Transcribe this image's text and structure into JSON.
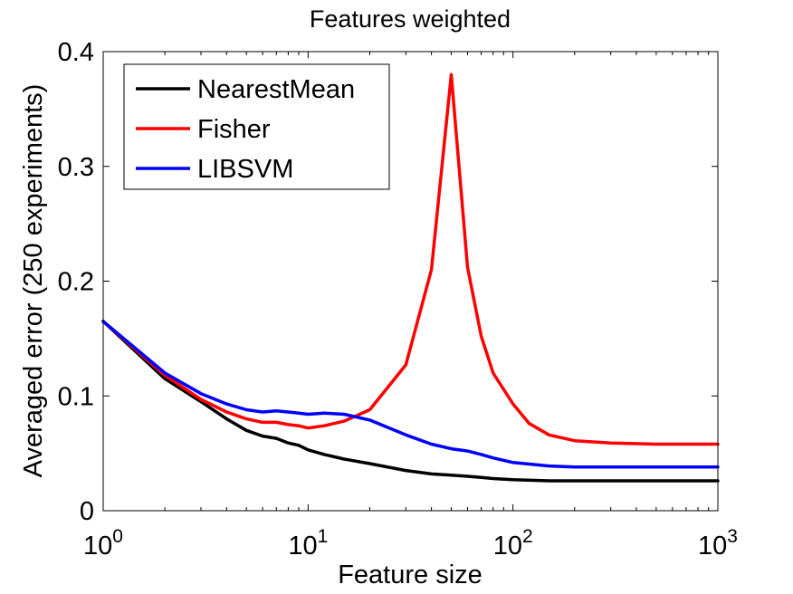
{
  "chart_data": {
    "type": "line",
    "title": "Features weighted",
    "xlabel": "Feature size",
    "ylabel": "Averaged error (250 experiments)",
    "xscale": "log",
    "xlim": [
      1,
      1000
    ],
    "ylim": [
      0,
      0.4
    ],
    "x_ticks": [
      {
        "base": "10",
        "exp": "0"
      },
      {
        "base": "10",
        "exp": "1"
      },
      {
        "base": "10",
        "exp": "2"
      },
      {
        "base": "10",
        "exp": "3"
      }
    ],
    "y_ticks": [
      "0",
      "0.1",
      "0.2",
      "0.3",
      "0.4"
    ],
    "grid": false,
    "legend_position": "top-left",
    "series": [
      {
        "name": "NearestMean",
        "color": "#000000",
        "x": [
          1,
          2,
          3,
          4,
          5,
          6,
          7,
          8,
          9,
          10,
          12,
          15,
          20,
          30,
          40,
          50,
          60,
          70,
          80,
          100,
          150,
          200,
          500,
          1000
        ],
        "y": [
          0.165,
          0.115,
          0.095,
          0.08,
          0.07,
          0.065,
          0.063,
          0.059,
          0.057,
          0.053,
          0.049,
          0.045,
          0.041,
          0.035,
          0.032,
          0.031,
          0.03,
          0.029,
          0.028,
          0.027,
          0.026,
          0.026,
          0.026,
          0.026
        ]
      },
      {
        "name": "Fisher",
        "color": "#ff0000",
        "x": [
          1,
          2,
          3,
          4,
          5,
          6,
          7,
          8,
          9,
          10,
          12,
          15,
          20,
          30,
          40,
          50,
          60,
          70,
          80,
          100,
          120,
          150,
          200,
          300,
          500,
          1000
        ],
        "y": [
          0.165,
          0.118,
          0.097,
          0.086,
          0.08,
          0.077,
          0.077,
          0.075,
          0.074,
          0.072,
          0.074,
          0.078,
          0.088,
          0.127,
          0.21,
          0.38,
          0.212,
          0.152,
          0.12,
          0.093,
          0.076,
          0.066,
          0.061,
          0.059,
          0.058,
          0.058
        ]
      },
      {
        "name": "LIBSVM",
        "color": "#0000ff",
        "x": [
          1,
          2,
          3,
          4,
          5,
          6,
          7,
          8,
          9,
          10,
          12,
          15,
          20,
          30,
          40,
          50,
          60,
          70,
          80,
          100,
          150,
          200,
          500,
          1000
        ],
        "y": [
          0.165,
          0.12,
          0.102,
          0.093,
          0.088,
          0.086,
          0.087,
          0.086,
          0.085,
          0.084,
          0.085,
          0.084,
          0.079,
          0.066,
          0.058,
          0.054,
          0.052,
          0.049,
          0.046,
          0.042,
          0.039,
          0.038,
          0.038,
          0.038
        ]
      }
    ]
  }
}
